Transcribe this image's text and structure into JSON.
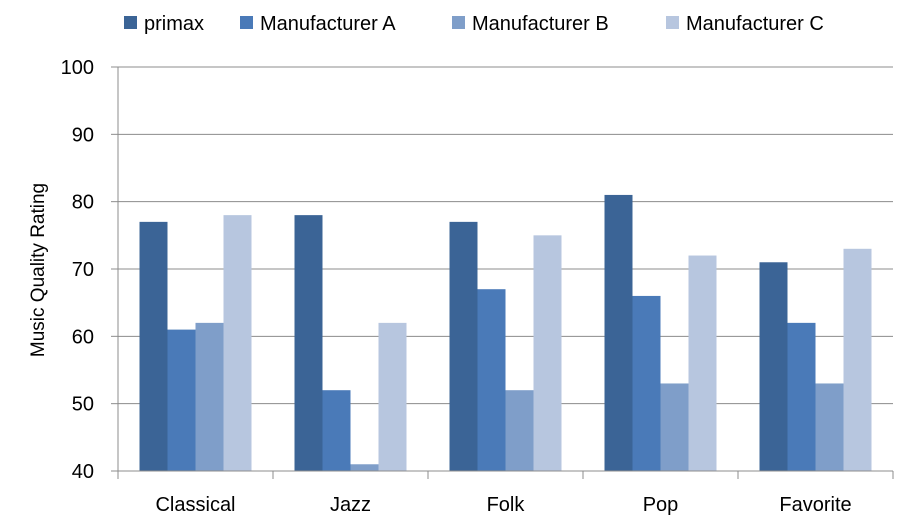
{
  "chart_data": {
    "type": "bar",
    "categories": [
      "Classical",
      "Jazz",
      "Folk",
      "Pop",
      "Favorite"
    ],
    "series": [
      {
        "name": "primax",
        "color": "#3b6496",
        "values": [
          77,
          78,
          77,
          81,
          71
        ]
      },
      {
        "name": "Manufacturer A",
        "color": "#4a7ab8",
        "values": [
          61,
          52,
          67,
          66,
          62
        ]
      },
      {
        "name": "Manufacturer B",
        "color": "#7f9ec9",
        "values": [
          62,
          41,
          52,
          53,
          53
        ]
      },
      {
        "name": "Manufacturer C",
        "color": "#b7c6df",
        "values": [
          78,
          62,
          75,
          72,
          73
        ]
      }
    ],
    "title": "",
    "xlabel": "",
    "ylabel": "Music Quality Rating",
    "ylim": [
      40,
      100
    ],
    "yticks": [
      40,
      50,
      60,
      70,
      80,
      90,
      100
    ],
    "grid": true,
    "legend_position": "top"
  }
}
